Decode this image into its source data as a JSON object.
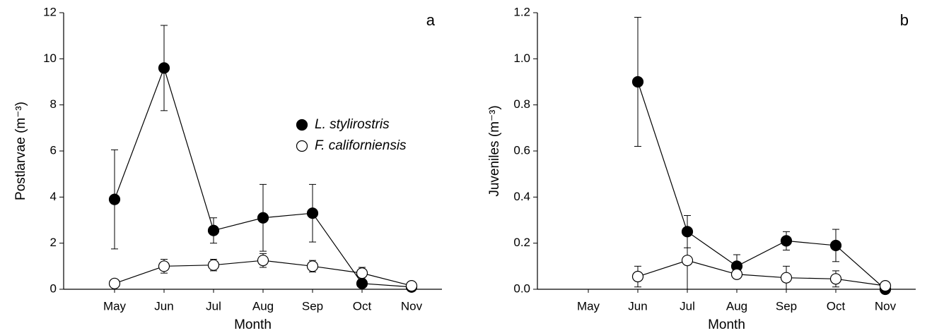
{
  "chart_data": [
    {
      "type": "line",
      "panel_label": "a",
      "xlabel": "Month",
      "ylabel": "Postlarvae (m⁻³)",
      "categories": [
        "May",
        "Jun",
        "Jul",
        "Aug",
        "Sep",
        "Oct",
        "Nov"
      ],
      "ylim": [
        0,
        12
      ],
      "yticks": [
        0,
        2,
        4,
        6,
        8,
        10,
        12
      ],
      "legend": true,
      "series": [
        {
          "name": "L. stylirostris",
          "color": "#000000",
          "fill": "#000000",
          "values": [
            3.9,
            9.6,
            2.55,
            3.1,
            3.3,
            0.25,
            0.1
          ],
          "errors": [
            2.15,
            1.85,
            0.55,
            1.45,
            1.25,
            0.05,
            0.05
          ]
        },
        {
          "name": "F. californiensis",
          "color": "#000000",
          "fill": "#ffffff",
          "values": [
            0.25,
            1.0,
            1.05,
            1.25,
            1.0,
            0.7,
            0.15
          ],
          "errors": [
            0.05,
            0.3,
            0.25,
            0.3,
            0.25,
            0.25,
            0.05
          ]
        }
      ]
    },
    {
      "type": "line",
      "panel_label": "b",
      "xlabel": "Month",
      "ylabel": "Juveniles (m⁻³)",
      "categories": [
        "May",
        "Jun",
        "Jul",
        "Aug",
        "Sep",
        "Oct",
        "Nov"
      ],
      "ylim": [
        0,
        1.2
      ],
      "yticks": [
        {
          "value": 0,
          "label": "0.0"
        },
        0.2,
        0.4,
        0.6,
        0.8,
        {
          "value": 1,
          "label": "1.0"
        },
        1.2
      ],
      "legend": false,
      "series": [
        {
          "color": "#000000",
          "fill": "#000000",
          "values": [
            null,
            0.9,
            0.25,
            0.1,
            0.21,
            0.19,
            0.0
          ],
          "errors": [
            null,
            0.28,
            0.07,
            0.05,
            0.04,
            0.07,
            0.0
          ]
        },
        {
          "color": "#000000",
          "fill": "#ffffff",
          "values": [
            null,
            0.055,
            0.125,
            0.065,
            0.05,
            0.045,
            0.015
          ],
          "errors": [
            null,
            0.045,
            0.125,
            0.01,
            0.05,
            0.035,
            0.005
          ]
        }
      ]
    }
  ]
}
